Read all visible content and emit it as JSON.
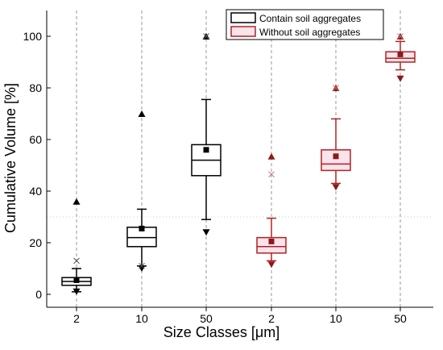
{
  "chart_data": {
    "type": "box",
    "xlabel": "Size Classes [μm]",
    "ylabel": "Cumulative Volume [%]",
    "ylim": [
      -5,
      110
    ],
    "yticks": [
      0,
      20,
      40,
      60,
      80,
      100
    ],
    "grid": "dashed vertical at each category",
    "legend_position": "top-right",
    "categories": [
      "2",
      "10",
      "50",
      "2",
      "10",
      "50"
    ],
    "series": [
      {
        "name": "Contain soil aggregates",
        "color": "#000000",
        "fill": "#ffffff",
        "boxes": [
          {
            "category": "2",
            "min": 1,
            "q1": 3.5,
            "median": 5,
            "q3": 6.5,
            "max": 10,
            "mean": 5.5,
            "p1_x": 13,
            "p_max": 36,
            "p_min": 1
          },
          {
            "category": "10",
            "min": 11,
            "q1": 18.5,
            "median": 22,
            "q3": 26,
            "max": 33,
            "mean": 25.5,
            "p1_x": 11,
            "p_max": 70,
            "p_min": 10
          },
          {
            "category": "50",
            "min": 29,
            "q1": 46,
            "median": 52,
            "q3": 58,
            "max": 75.5,
            "mean": 56,
            "p1_x": 100,
            "p_max": 100,
            "p_min": 24
          }
        ]
      },
      {
        "name": "Without soil aggregates",
        "color": "#b22222",
        "fill": "#fbe3ec",
        "boxes": [
          {
            "category": "2",
            "min": 13,
            "q1": 16,
            "median": 18.5,
            "q3": 22,
            "max": 29.5,
            "mean": 20.5,
            "p1_x": 46.5,
            "p_max": 53.5,
            "p_min": 11.5
          },
          {
            "category": "10",
            "min": 43,
            "q1": 48,
            "median": 50.5,
            "q3": 56,
            "max": 68,
            "mean": 53.5,
            "p1_x": 80,
            "p_max": 80,
            "p_min": 41.5
          },
          {
            "category": "50",
            "min": 87,
            "q1": 90,
            "median": 91.5,
            "q3": 94,
            "max": 98,
            "mean": 93,
            "p1_x": 100,
            "p_max": 100,
            "p_min": 83.5
          }
        ]
      }
    ]
  },
  "colors": {
    "series_black": "#000000",
    "series_red": "#b22222",
    "red_fill": "#fbe3ec",
    "grid": "#999999"
  }
}
